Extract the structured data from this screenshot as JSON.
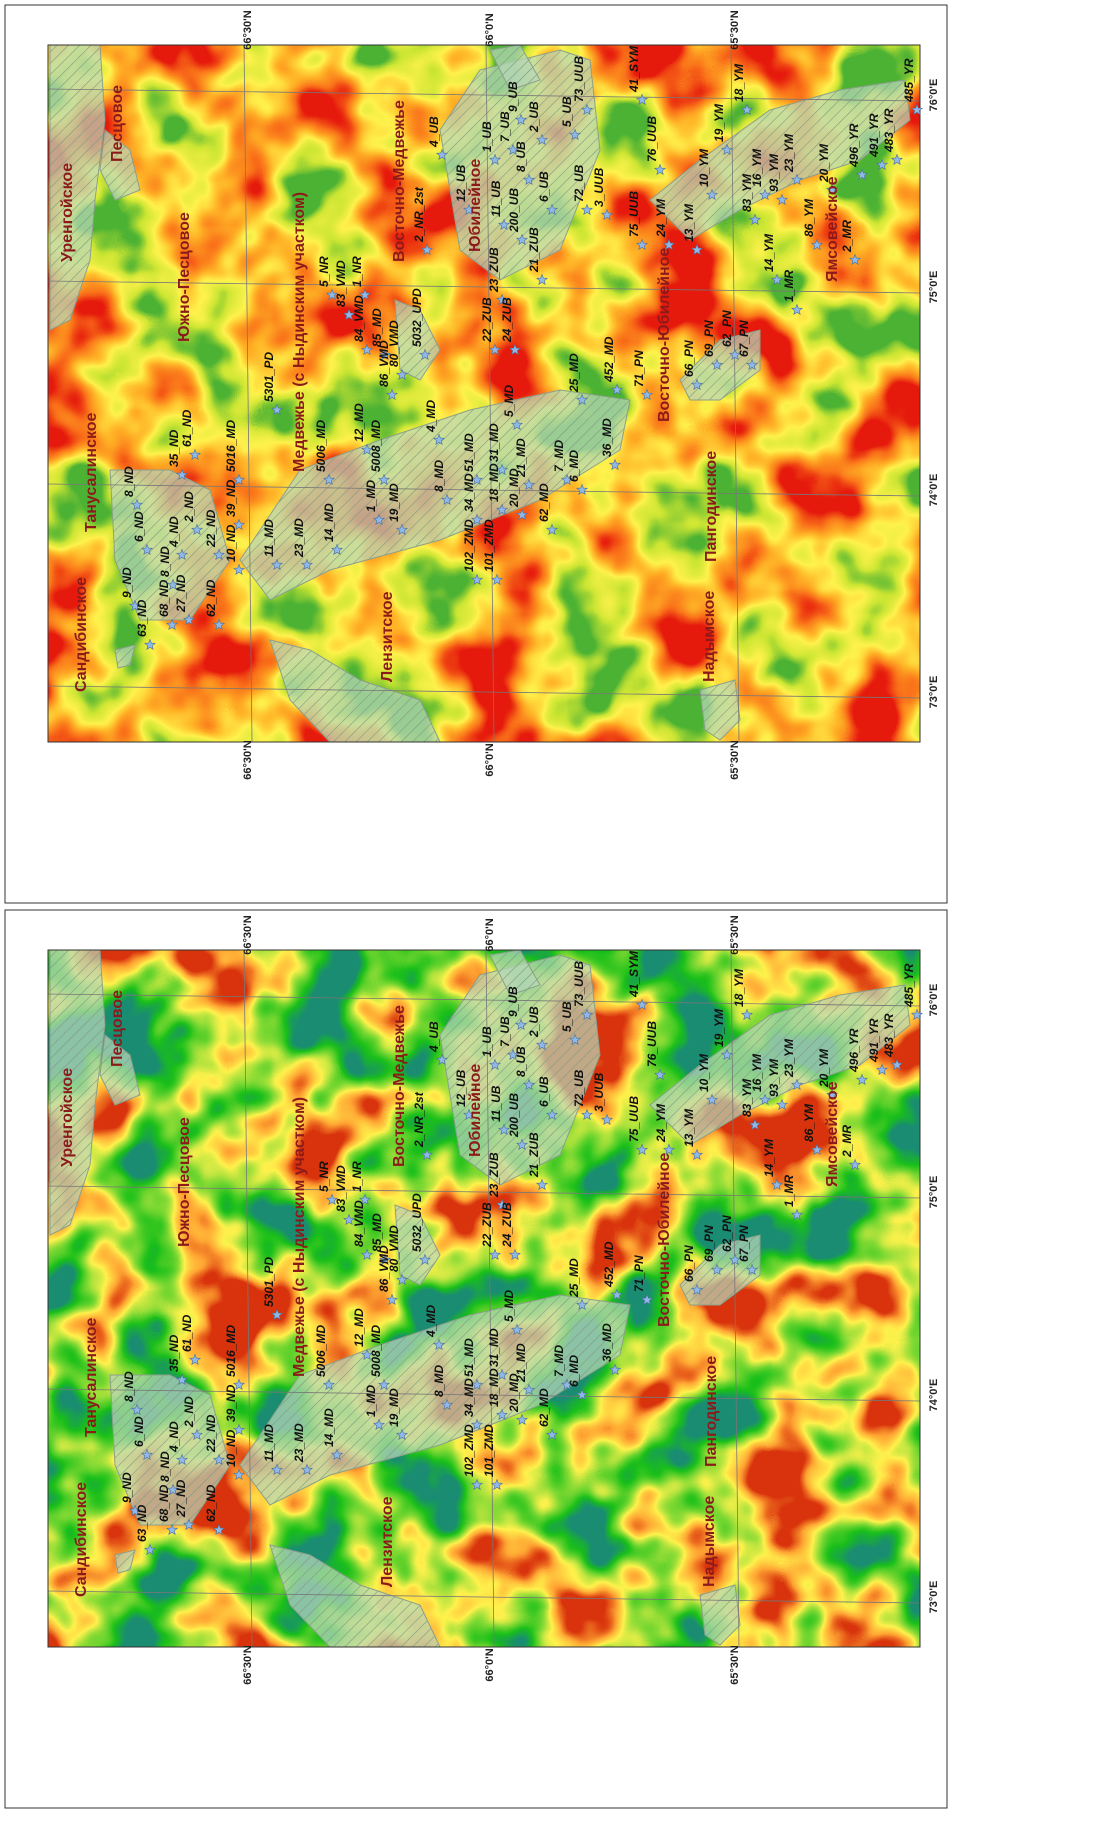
{
  "fields": [
    "Уренгойское",
    "Песцовое",
    "Южно-Песцовое",
    "Танусалинское",
    "Медвежье (с Ныдинским участком)",
    "Восточно-Медвежье",
    "Юбилейное",
    "Сандибинское",
    "Лензитское",
    "Восточно-Юбилейное",
    "Пангодинское",
    "Надымское",
    "Ямсовейское"
  ],
  "wells": [
    "9_ND",
    "6_ND",
    "8_ND",
    "35_ND",
    "61_ND",
    "63_ND",
    "68_ND",
    "8_ND",
    "4_ND",
    "2_ND",
    "27_ND",
    "22_ND",
    "62_ND",
    "10_ND",
    "39_ND",
    "5016_MD",
    "5301_PD",
    "11_MD",
    "23_MD",
    "5006_MD",
    "14_MD",
    "12_MD",
    "1_MD",
    "5008_MD",
    "19_MD",
    "4_MD",
    "8_MD",
    "86_VMD",
    "84_VMD",
    "85_MD",
    "80_VMD",
    "1_NR",
    "5_NR",
    "83_VMD",
    "5032_UPD",
    "2_NR_2st",
    "4_UB",
    "12_UB",
    "1_UB",
    "11_UB",
    "7_UB",
    "9_UB",
    "8_UB",
    "2_UB",
    "200_UB",
    "23_ZUB",
    "22_ZUB",
    "24_ZUB",
    "21_ZUB",
    "6_UB",
    "5_UB",
    "73_UUB",
    "72_UB",
    "3_UUB",
    "75_UUB",
    "76_UUB",
    "41_SYM",
    "24_YM",
    "13_YM",
    "10_YM",
    "19_YM",
    "18_YM",
    "83_YM",
    "16_YM",
    "93_YM",
    "23_YM",
    "86_YM",
    "20_YM",
    "14_YM",
    "1_MR",
    "2_MR",
    "496_YR",
    "491_YR",
    "483_YR",
    "485_YR",
    "71_PN",
    "66_PN",
    "69_PN",
    "62_PN",
    "67_PN",
    "25_MD",
    "452_MD",
    "36_MD",
    "7_MD",
    "6_MD",
    "5_MD",
    "31_MD",
    "51_MD",
    "21_MD",
    "20_MD",
    "18_MD",
    "34_MD",
    "62_MD",
    "102_ZMD",
    "101_ZMD"
  ],
  "latitude_labels": [
    "66°30'N",
    "66°0'N",
    "65°30'N"
  ],
  "longitude_labels": [
    "76°0'E",
    "75°0'E",
    "74°0'E",
    "73°0'E"
  ]
}
